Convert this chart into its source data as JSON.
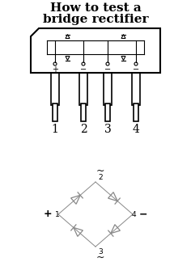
{
  "title_line1": "How to test a",
  "title_line2": "bridge rectifier",
  "title_fontsize": 11,
  "title_fontweight": "bold",
  "title_fontfamily": "DejaVu Serif",
  "bg_color": "#ffffff",
  "body_color": "#000000",
  "pin_labels": [
    "1",
    "2",
    "3",
    "4"
  ],
  "pin_symbols": [
    "+",
    "—",
    "—",
    "—"
  ],
  "plus_label": "+",
  "minus_label": "−",
  "tilde_top": "~",
  "tilde_bottom": "~",
  "diode_color": "#888888",
  "package_color": "#000000"
}
